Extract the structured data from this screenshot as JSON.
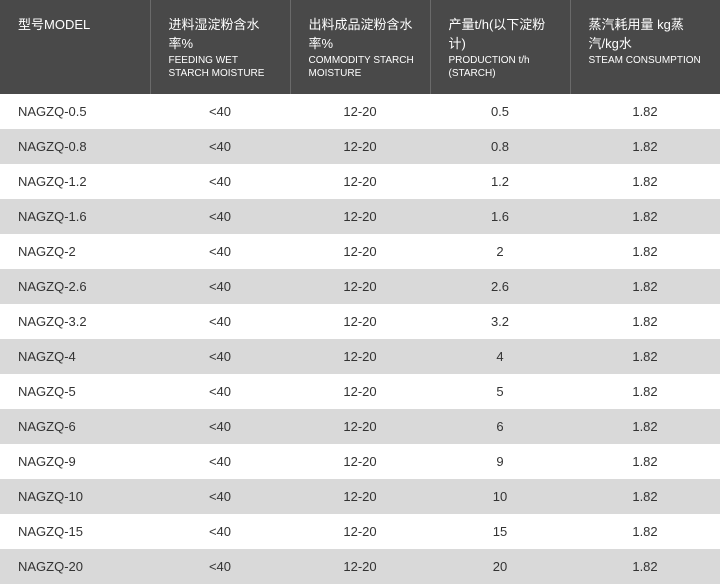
{
  "columns": [
    {
      "main": "型号MODEL",
      "sub": ""
    },
    {
      "main": "进料湿淀粉含水率%",
      "sub": "FEEDING WET STARCH MOISTURE"
    },
    {
      "main": "出料成品淀粉含水率%",
      "sub": "COMMODITY STARCH MOISTURE"
    },
    {
      "main": "产量t/h(以下淀粉计)",
      "sub": "PRODUCTION t/h (STARCH)"
    },
    {
      "main": "蒸汽耗用量 kg蒸汽/kg水",
      "sub": "STEAM CONSUMPTION"
    }
  ],
  "rows": [
    [
      "NAGZQ-0.5",
      "<40",
      "12-20",
      "0.5",
      "1.82"
    ],
    [
      "NAGZQ-0.8",
      "<40",
      "12-20",
      "0.8",
      "1.82"
    ],
    [
      "NAGZQ-1.2",
      "<40",
      "12-20",
      "1.2",
      "1.82"
    ],
    [
      "NAGZQ-1.6",
      "<40",
      "12-20",
      "1.6",
      "1.82"
    ],
    [
      "NAGZQ-2",
      "<40",
      "12-20",
      "2",
      "1.82"
    ],
    [
      "NAGZQ-2.6",
      "<40",
      "12-20",
      "2.6",
      "1.82"
    ],
    [
      "NAGZQ-3.2",
      "<40",
      "12-20",
      "3.2",
      "1.82"
    ],
    [
      "NAGZQ-4",
      "<40",
      "12-20",
      "4",
      "1.82"
    ],
    [
      "NAGZQ-5",
      "<40",
      "12-20",
      "5",
      "1.82"
    ],
    [
      "NAGZQ-6",
      "<40",
      "12-20",
      "6",
      "1.82"
    ],
    [
      "NAGZQ-9",
      "<40",
      "12-20",
      "9",
      "1.82"
    ],
    [
      "NAGZQ-10",
      "<40",
      "12-20",
      "10",
      "1.82"
    ],
    [
      "NAGZQ-15",
      "<40",
      "12-20",
      "15",
      "1.82"
    ],
    [
      "NAGZQ-20",
      "<40",
      "12-20",
      "20",
      "1.82"
    ]
  ]
}
